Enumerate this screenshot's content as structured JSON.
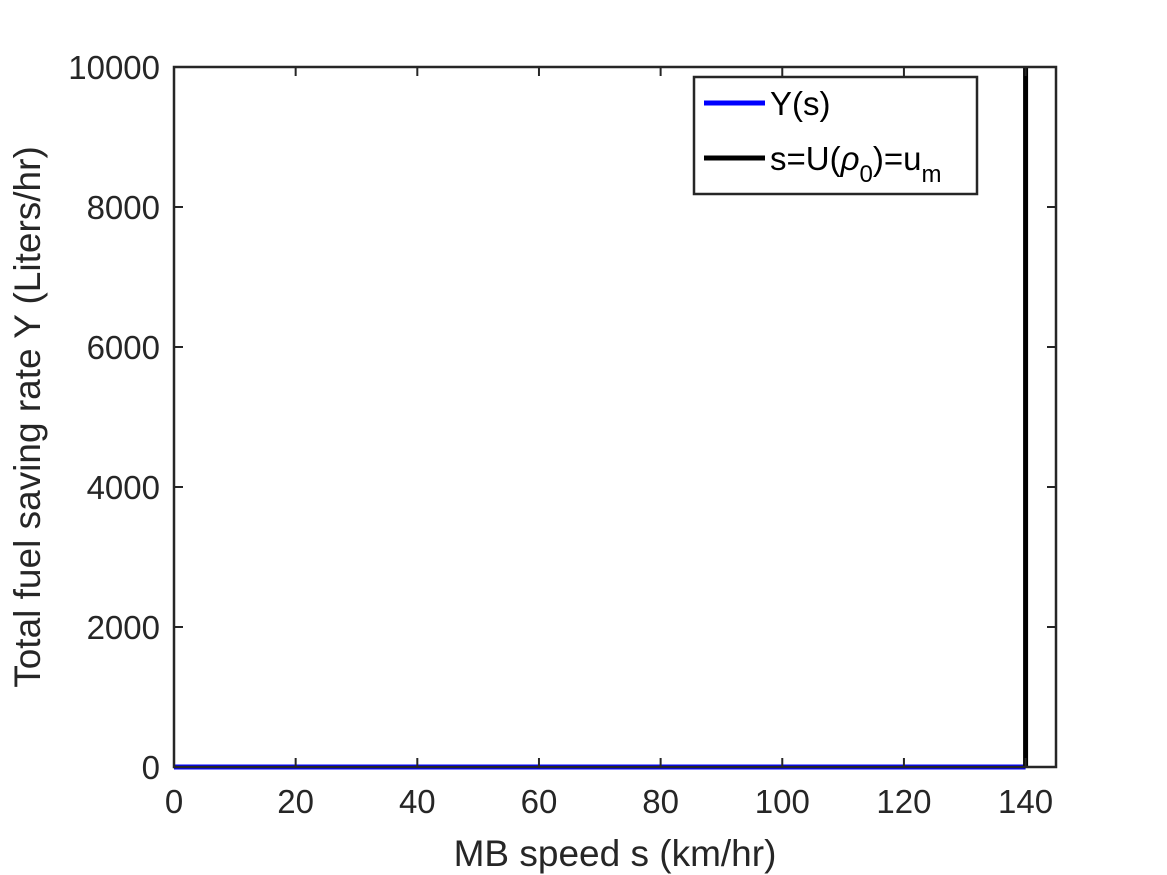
{
  "chart_data": {
    "type": "line",
    "xlabel": "MB speed s (km/hr)",
    "ylabel": "Total fuel saving rate Y (Liters/hr)",
    "xlim": [
      0,
      145
    ],
    "ylim": [
      0,
      10000
    ],
    "xticks": [
      0,
      20,
      40,
      60,
      80,
      100,
      120,
      140
    ],
    "yticks": [
      0,
      2000,
      4000,
      6000,
      8000,
      10000
    ],
    "grid": false,
    "legend_position": "top-right",
    "series": [
      {
        "name": "Y(s)",
        "color": "#0000ff",
        "x": [
          0,
          20,
          40,
          60,
          80,
          100,
          120,
          140
        ],
        "y": [
          0,
          0,
          0,
          0,
          0,
          0,
          0,
          0
        ]
      },
      {
        "name_parts": {
          "prefix": "s=U(",
          "rho": "ρ",
          "rho_sub": "0",
          "middle": ")=u",
          "u_sub": "m"
        },
        "color": "#000000",
        "x": [
          140,
          140
        ],
        "y": [
          0,
          10000
        ]
      }
    ]
  }
}
